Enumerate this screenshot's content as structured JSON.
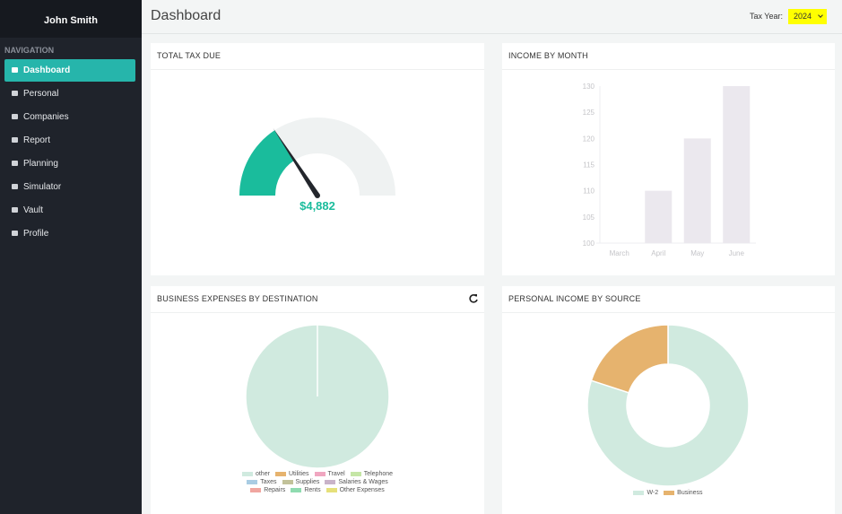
{
  "sidebar": {
    "user": "John Smith",
    "section": "NAVIGATION",
    "active": 0,
    "items": [
      "Dashboard",
      "Personal",
      "Companies",
      "Report",
      "Planning",
      "Simulator",
      "Vault",
      "Profile"
    ]
  },
  "header": {
    "title": "Dashboard",
    "tax_year_label": "Tax Year:",
    "tax_year": "2024"
  },
  "chart_data": [
    {
      "type": "gauge",
      "title": "TOTAL TAX DUE",
      "value": 4882,
      "value_label": "$4,882",
      "range": [
        0,
        15500
      ],
      "color": "#1abc9c",
      "track_color": "#eff2f2"
    },
    {
      "type": "bar",
      "title": "INCOME BY MONTH",
      "categories": [
        "March",
        "April",
        "May",
        "June"
      ],
      "values": [
        100,
        110,
        120,
        130
      ],
      "color": "#ebe8ee",
      "ylim": [
        100,
        130
      ],
      "yticks": [
        100,
        105,
        110,
        115,
        120,
        125,
        130
      ]
    },
    {
      "type": "pie",
      "title": "BUSINESS EXPENSES BY DESTINATION",
      "categories": [
        "other",
        "Utilities",
        "Travel",
        "Telephone",
        "Taxes",
        "Supplies",
        "Salaries & Wages",
        "Repairs",
        "Rents",
        "Other Expenses"
      ],
      "values": [
        100,
        0,
        0,
        0,
        0,
        0,
        0,
        0,
        0,
        0
      ],
      "colors": [
        "#d0eadf",
        "#e6b36e",
        "#f0a6c0",
        "#c5e6a6",
        "#a9cce3",
        "#c2c29a",
        "#c9b3c9",
        "#f0a6a0",
        "#8fdbb0",
        "#e6e07a"
      ]
    },
    {
      "type": "doughnut",
      "title": "PERSONAL INCOME BY SOURCE",
      "categories": [
        "W-2",
        "Business"
      ],
      "values": [
        80,
        20
      ],
      "colors": [
        "#d0eadf",
        "#e6b36e"
      ]
    }
  ]
}
